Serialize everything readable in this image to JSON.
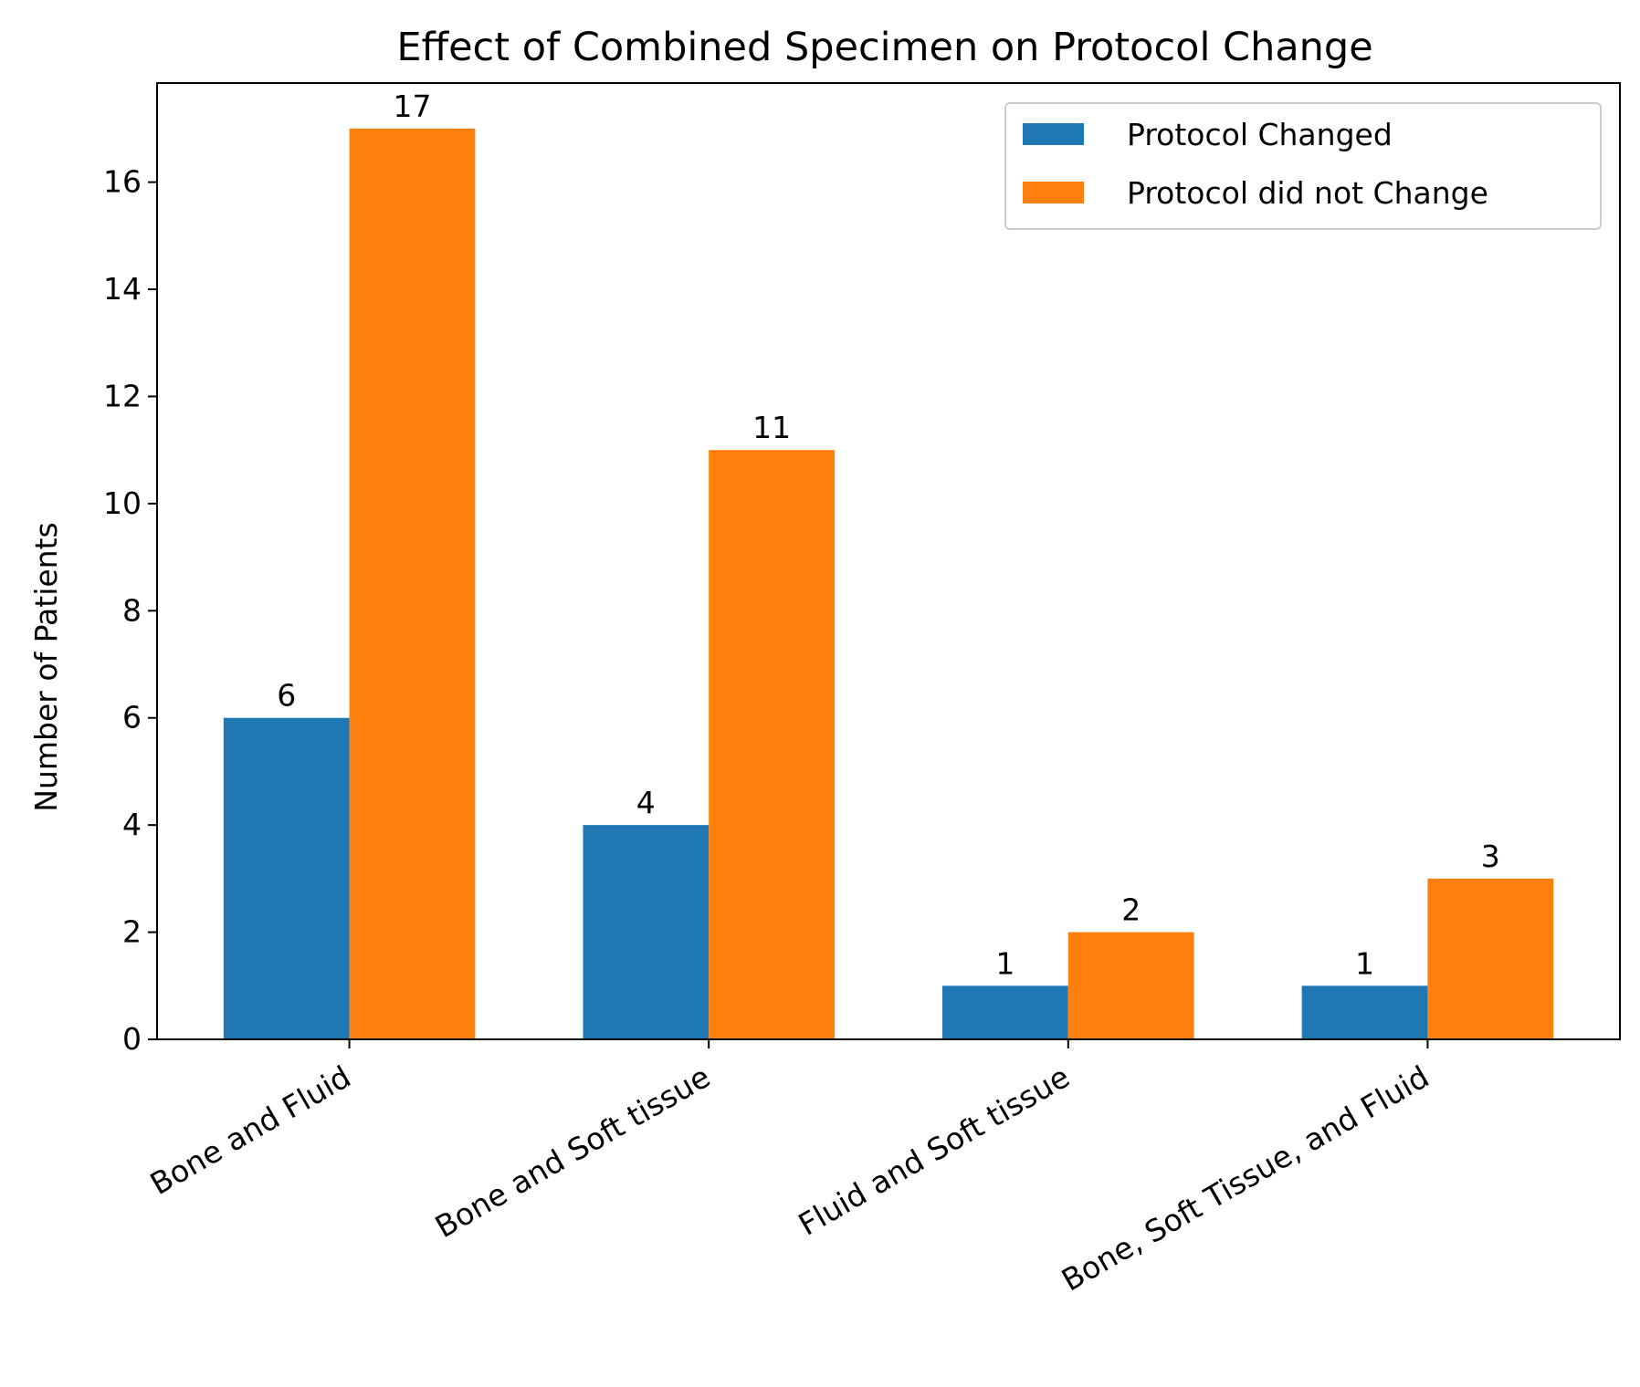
{
  "chart_data": {
    "type": "bar",
    "title": "Effect of Combined Specimen on Protocol Change",
    "xlabel": "",
    "ylabel": "Number of Patients",
    "categories": [
      "Bone and Fluid",
      "Bone and Soft tissue",
      "Fluid and Soft tissue",
      "Bone, Soft Tissue, and Fluid"
    ],
    "series": [
      {
        "name": "Protocol Changed",
        "values": [
          6,
          4,
          1,
          1
        ],
        "color": "#1f77b4"
      },
      {
        "name": "Protocol did not Change",
        "values": [
          17,
          11,
          2,
          3
        ],
        "color": "#ff7f0e"
      }
    ],
    "ylim": [
      0,
      17.85
    ],
    "yticks": [
      0,
      2,
      4,
      6,
      8,
      10,
      12,
      14,
      16
    ],
    "grid": false,
    "legend_position": "top-right",
    "data_labels": true
  }
}
